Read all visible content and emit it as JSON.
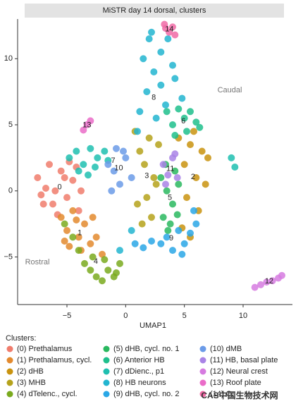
{
  "chart_data": {
    "type": "scatter",
    "title": "MiSTR day 14 dorsal, clusters",
    "x_label": "UMAP1",
    "xlim": [
      -9.2,
      14.2
    ],
    "ylim": [
      -8.6,
      13
    ],
    "xticks": [
      {
        "value": -5,
        "label": "−5"
      },
      0,
      5,
      10
    ],
    "yticks": [
      {
        "value": -5,
        "label": "−5"
      },
      0,
      5,
      10
    ],
    "annotations": [
      "Caudal",
      "Rostral"
    ],
    "legend_title": "Clusters:",
    "watermark": "CAS中国生物技术网",
    "series": [
      {
        "name": "(0) Prethalamus",
        "label": "0",
        "color": "#f07c6c",
        "x": [
          -7.5,
          -7,
          -6.5,
          -6,
          -5.5,
          -5,
          -4.5,
          -4,
          -6.8,
          -5.8,
          -4.8,
          -3.8,
          -6.2,
          -5.2,
          -7.2,
          -4.2
        ],
        "y": [
          1,
          -1,
          2,
          0,
          1.5,
          -0.5,
          0.8,
          -1.5,
          0.2,
          -1.8,
          2.2,
          0,
          -1,
          1,
          -0.3,
          1.8
        ]
      },
      {
        "name": "(1) Prethalamus, cycl.",
        "label": "1",
        "color": "#e38a2e",
        "x": [
          -5.5,
          -5,
          -4.5,
          -4,
          -3.5,
          -3,
          -2.5,
          -2,
          -4.8,
          -3.8,
          -2.8,
          -5.2,
          -4.2
        ],
        "y": [
          -2,
          -3,
          -1.5,
          -3.5,
          -2.5,
          -4,
          -3.5,
          -4.8,
          -4.2,
          -4.5,
          -2,
          -3.8,
          -2.2
        ]
      },
      {
        "name": "(2) dHB",
        "label": "2",
        "color": "#c9930f",
        "x": [
          4.5,
          5,
          5.5,
          6,
          6.5,
          7,
          5.2,
          6.2,
          4.8,
          5.8,
          6.8,
          5.5
        ],
        "y": [
          4,
          2,
          3.5,
          1,
          3,
          2.5,
          -0.5,
          -1.5,
          -2.8,
          4.5,
          0.5,
          -3.5
        ]
      },
      {
        "name": "(3) MHB",
        "label": "3",
        "color": "#b5a21b",
        "x": [
          0.8,
          1.2,
          1.6,
          2,
          2.4,
          2.8,
          1,
          1.8,
          2.6,
          1.4,
          2.2
        ],
        "y": [
          4.5,
          3,
          2,
          4,
          1,
          3.5,
          -1,
          -0.5,
          0.5,
          -2.5,
          -2
        ]
      },
      {
        "name": "(4) dTelenc., cycl.",
        "label": "4",
        "color": "#7aaa1e",
        "x": [
          -4,
          -3.5,
          -3,
          -2.5,
          -2,
          -1.5,
          -1,
          -0.5,
          -2.8,
          -1.8,
          -0.8,
          -4.5,
          -5.2
        ],
        "y": [
          -4.5,
          -5.5,
          -6,
          -6.5,
          -6.8,
          -6,
          -6.5,
          -5.5,
          -5,
          -5.2,
          -6.2,
          -3.5,
          -2.5
        ]
      },
      {
        "name": "(5) dHB, cycl. no. 1",
        "label": "5",
        "color": "#2ab85f",
        "x": [
          3,
          3.5,
          4,
          4.5,
          3.2,
          3.8,
          4.4,
          3.6,
          4.2,
          3.4
        ],
        "y": [
          1,
          0,
          -1,
          0.5,
          -2,
          -2.5,
          -1.8,
          -3,
          1.5,
          2
        ]
      },
      {
        "name": "(6) Anterior HB",
        "label": "6",
        "color": "#1fbf8c",
        "x": [
          3.5,
          4,
          4.5,
          5,
          5.5,
          6,
          4.2,
          5.2,
          6.3
        ],
        "y": [
          6,
          5,
          6.2,
          5.5,
          6,
          5.2,
          4.2,
          4.5,
          4.8
        ]
      },
      {
        "name": "(7) dDienc., p1",
        "label": "7",
        "color": "#1fbfb0",
        "x": [
          -4.8,
          -4.2,
          -3.6,
          -3,
          -2.4,
          -1.8,
          -4,
          -3.2,
          -2.6,
          -1.5,
          9,
          9.3
        ],
        "y": [
          2.5,
          3,
          2,
          3.2,
          2.5,
          3,
          1.5,
          1.2,
          1.8,
          2.3,
          2.5,
          1.8
        ]
      },
      {
        "name": "(8) HB neurons",
        "label": "8",
        "color": "#22b5d0",
        "x": [
          1.2,
          1.8,
          2.4,
          3,
          3.6,
          4.2,
          4.8,
          2,
          3,
          4,
          1,
          1.5,
          2.6,
          3.4,
          2.2,
          -0.5,
          0.5
        ],
        "y": [
          6,
          7.5,
          9,
          10.5,
          11.5,
          8.5,
          7,
          11.5,
          8,
          9.5,
          4.5,
          10,
          5.5,
          6.5,
          12,
          -4.5,
          -3
        ]
      },
      {
        "name": "(9) dHB, cycl. no. 2",
        "label": "9",
        "color": "#2aa7e6",
        "x": [
          3,
          3.5,
          4,
          4.5,
          5,
          5.5,
          6,
          0.8,
          1.5,
          2.2,
          5.8,
          4.8
        ],
        "y": [
          -4,
          -3.5,
          -4.5,
          -3,
          -4,
          -3.2,
          -2.5,
          -4,
          -4.3,
          -3.8,
          -1.5,
          -4.8
        ]
      },
      {
        "name": "(10) dMB",
        "label": "10",
        "color": "#6b9be8",
        "x": [
          -1.5,
          -1,
          -0.5,
          0,
          0.5,
          -1.2,
          -0.2,
          -0.8
        ],
        "y": [
          2,
          1.5,
          0.5,
          2.5,
          1,
          0,
          3,
          3.2
        ]
      },
      {
        "name": "(11) HB, basal plate",
        "label": "11",
        "color": "#a983e6",
        "x": [
          3.2,
          3.6,
          4,
          4.4,
          3.4,
          4.2
        ],
        "y": [
          2,
          1.2,
          2.5,
          1,
          0.5,
          2.8
        ]
      },
      {
        "name": "(12) Neural crest",
        "label": "12",
        "color": "#d67be0",
        "x": [
          11,
          11.5,
          12,
          12.5,
          13,
          13.3
        ],
        "y": [
          -7.3,
          -7.1,
          -6.9,
          -6.8,
          -6.6,
          -6.4
        ]
      },
      {
        "name": "(13) Roof plate",
        "label": "13",
        "color": "#ea6cc8",
        "x": [
          -3.6,
          -3.3,
          -3
        ],
        "y": [
          4.6,
          5,
          5.3
        ]
      },
      {
        "name": "(14) C",
        "label": "14",
        "color": "#f06aa6",
        "x": [
          3.4,
          3.7,
          4,
          4.2,
          3.3
        ],
        "y": [
          12.3,
          12,
          12.4,
          11.8,
          12.6
        ]
      }
    ]
  }
}
